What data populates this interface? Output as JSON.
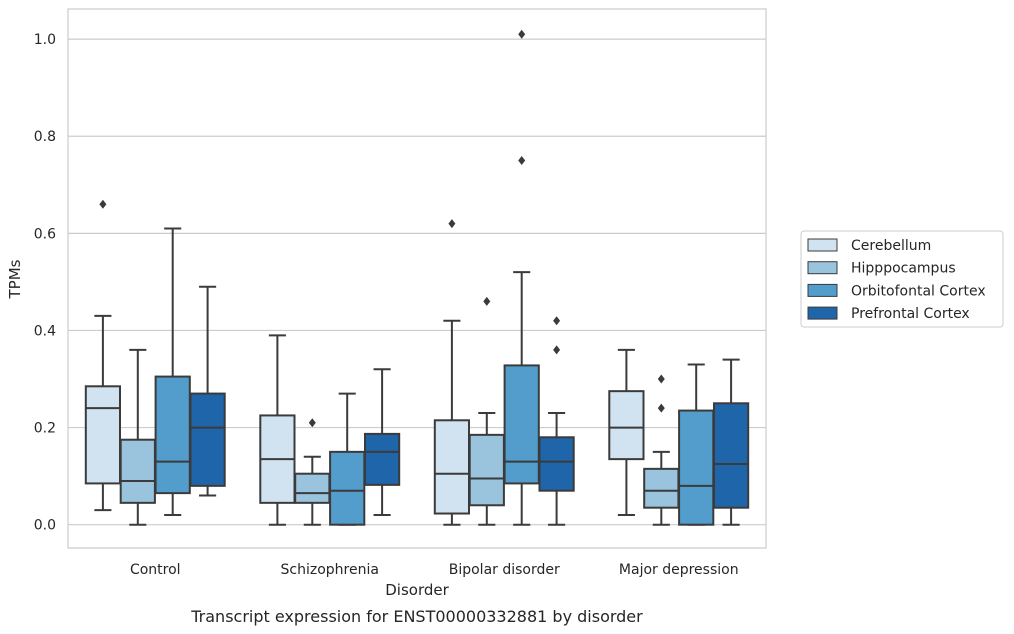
{
  "chart_data": {
    "type": "box",
    "title": "",
    "xlabel": "Disorder",
    "ylabel": "TPMs",
    "caption": "Transcript expression for ENST00000332881 by disorder",
    "ylim": [
      -0.048,
      1.062
    ],
    "yticks": [
      "0.0",
      "0.2",
      "0.4",
      "0.6",
      "0.8",
      "1.0"
    ],
    "grid": "horizontal",
    "legend_position": "right",
    "categories": [
      "Control",
      "Schizophrenia",
      "Bipolar disorder",
      "Major depression"
    ],
    "series": [
      {
        "name": "Cerebellum",
        "color": "#d1e2f1",
        "boxes": [
          {
            "whislo": 0.03,
            "q1": 0.085,
            "med": 0.24,
            "q3": 0.285,
            "whishi": 0.43,
            "fliers": [
              0.66
            ]
          },
          {
            "whislo": 0.0,
            "q1": 0.045,
            "med": 0.135,
            "q3": 0.225,
            "whishi": 0.39,
            "fliers": []
          },
          {
            "whislo": 0.0,
            "q1": 0.023,
            "med": 0.105,
            "q3": 0.215,
            "whishi": 0.42,
            "fliers": [
              0.62
            ]
          },
          {
            "whislo": 0.02,
            "q1": 0.135,
            "med": 0.2,
            "q3": 0.275,
            "whishi": 0.36,
            "fliers": []
          }
        ]
      },
      {
        "name": "Hipppocampus",
        "color": "#9ac3dd",
        "boxes": [
          {
            "whislo": 0.0,
            "q1": 0.045,
            "med": 0.09,
            "q3": 0.175,
            "whishi": 0.36,
            "fliers": []
          },
          {
            "whislo": 0.0,
            "q1": 0.045,
            "med": 0.065,
            "q3": 0.105,
            "whishi": 0.14,
            "fliers": [
              0.21
            ]
          },
          {
            "whislo": 0.0,
            "q1": 0.04,
            "med": 0.095,
            "q3": 0.185,
            "whishi": 0.23,
            "fliers": [
              0.46
            ]
          },
          {
            "whislo": 0.0,
            "q1": 0.035,
            "med": 0.07,
            "q3": 0.115,
            "whishi": 0.15,
            "fliers": [
              0.24,
              0.3
            ]
          }
        ]
      },
      {
        "name": "Orbitofontal Cortex",
        "color": "#529dcc",
        "boxes": [
          {
            "whislo": 0.02,
            "q1": 0.065,
            "med": 0.13,
            "q3": 0.305,
            "whishi": 0.61,
            "fliers": []
          },
          {
            "whislo": 0.0,
            "q1": 0.0,
            "med": 0.07,
            "q3": 0.15,
            "whishi": 0.27,
            "fliers": []
          },
          {
            "whislo": 0.0,
            "q1": 0.085,
            "med": 0.13,
            "q3": 0.328,
            "whishi": 0.52,
            "fliers": [
              0.75,
              1.01
            ]
          },
          {
            "whislo": 0.0,
            "q1": 0.0,
            "med": 0.08,
            "q3": 0.235,
            "whishi": 0.33,
            "fliers": []
          }
        ]
      },
      {
        "name": "Prefrontal Cortex",
        "color": "#1f65a9",
        "boxes": [
          {
            "whislo": 0.06,
            "q1": 0.08,
            "med": 0.2,
            "q3": 0.27,
            "whishi": 0.49,
            "fliers": []
          },
          {
            "whislo": 0.02,
            "q1": 0.082,
            "med": 0.15,
            "q3": 0.187,
            "whishi": 0.32,
            "fliers": []
          },
          {
            "whislo": 0.0,
            "q1": 0.07,
            "med": 0.13,
            "q3": 0.18,
            "whishi": 0.23,
            "fliers": [
              0.36,
              0.42
            ]
          },
          {
            "whislo": 0.0,
            "q1": 0.035,
            "med": 0.125,
            "q3": 0.25,
            "whishi": 0.34,
            "fliers": []
          }
        ]
      }
    ]
  }
}
